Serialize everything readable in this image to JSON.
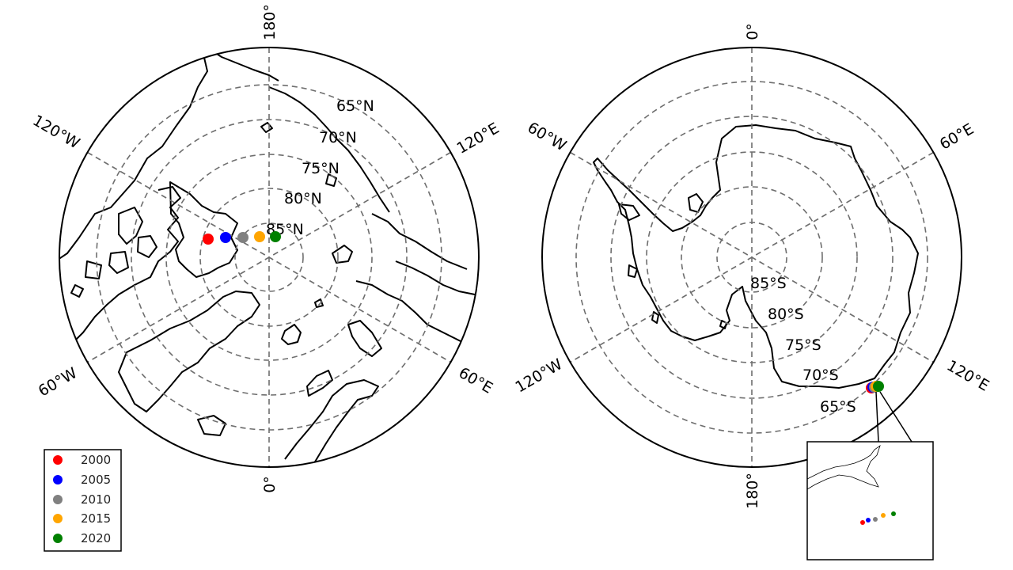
{
  "north": {
    "lat_labels": [
      "65°N",
      "70°N",
      "75°N",
      "80°N",
      "85°N"
    ],
    "lon_labels": {
      "top": "180°",
      "bottom": "0°",
      "upper_left": "120°W",
      "upper_right": "120°E",
      "lower_left": "60°W",
      "lower_right": "60°E"
    }
  },
  "south": {
    "lat_labels": [
      "85°S",
      "80°S",
      "75°S",
      "70°S",
      "65°S"
    ],
    "lon_labels": {
      "top": "0°",
      "bottom": "180°",
      "upper_left": "60°W",
      "upper_right": "60°E",
      "lower_left": "120°W",
      "lower_right": "120°E"
    }
  },
  "legend": [
    {
      "label": "2000",
      "color": "#ff0000"
    },
    {
      "label": "2005",
      "color": "#0000ff"
    },
    {
      "label": "2010",
      "color": "#808080"
    },
    {
      "label": "2015",
      "color": "#ffa500"
    },
    {
      "label": "2020",
      "color": "#008000"
    }
  ]
}
